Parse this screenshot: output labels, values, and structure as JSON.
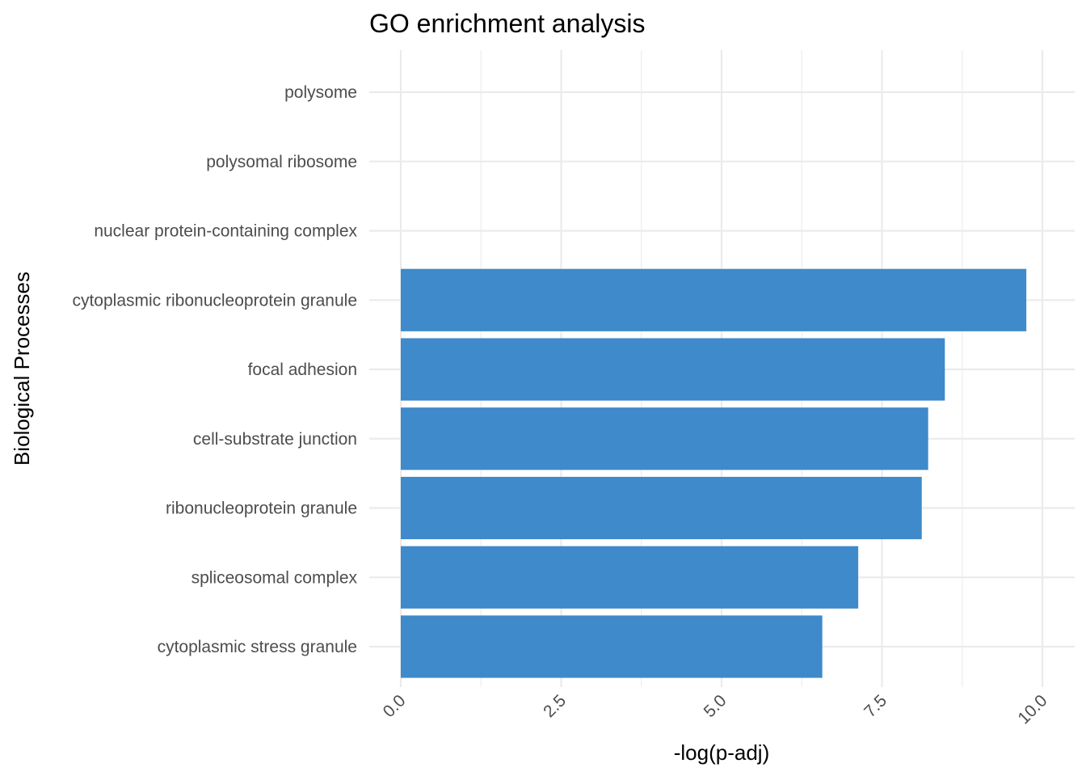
{
  "chart_data": {
    "type": "bar",
    "orientation": "horizontal",
    "title": "GO enrichment analysis",
    "xlabel": "-log(p-adj)",
    "ylabel": "Biological Processes",
    "categories": [
      "polysome",
      "polysomal ribosome",
      "nuclear protein-containing complex",
      "cytoplasmic ribonucleoprotein granule",
      "focal adhesion",
      "cell-substrate junction",
      "ribonucleoprotein granule",
      "spliceosomal complex",
      "cytoplasmic stress granule"
    ],
    "values": [
      null,
      null,
      null,
      9.75,
      8.48,
      8.22,
      8.12,
      7.13,
      6.57
    ],
    "xlim": [
      0,
      10
    ],
    "xticks": [
      0,
      2.5,
      5,
      7.5,
      10
    ],
    "xtick_labels": [
      "0.0",
      "2.5",
      "5.0",
      "7.5",
      "10.0"
    ],
    "grid": true,
    "legend": "none",
    "bar_color": "#3e8aca"
  }
}
